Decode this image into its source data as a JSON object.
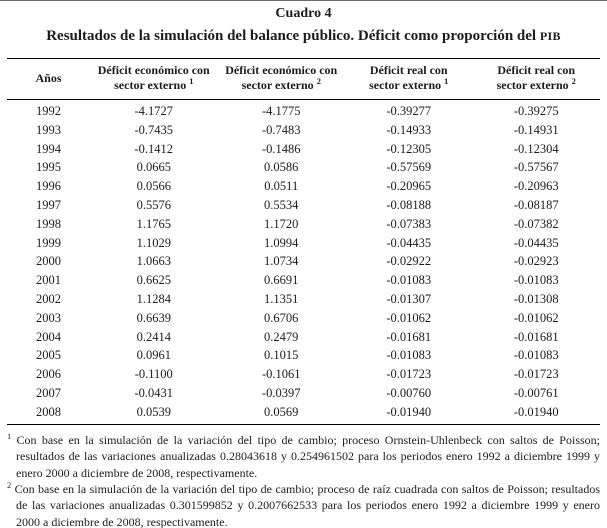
{
  "page": {
    "caption_number": "Cuadro 4",
    "caption_title_text": "Resultados de la simulación del balance público. Déficit como proporción del ",
    "caption_title_acronym": "PIB"
  },
  "table": {
    "columns": [
      {
        "label": "Años"
      },
      {
        "line1": "Déficit económico con",
        "line2": "sector externo",
        "sup": "1"
      },
      {
        "line1": "Déficit económico con",
        "line2": "sector externo",
        "sup": "2"
      },
      {
        "line1": "Déficit real con",
        "line2": "sector externo",
        "sup": "1"
      },
      {
        "line1": "Déficit real con",
        "line2": "sector externo",
        "sup": "2"
      }
    ],
    "rows": [
      {
        "year": "1992",
        "econ1": "-4.1727",
        "econ2": "-4.1775",
        "real1": "-0.39277",
        "real2": "-0.39275"
      },
      {
        "year": "1993",
        "econ1": "-0.7435",
        "econ2": "-0.7483",
        "real1": "-0.14933",
        "real2": "-0.14931"
      },
      {
        "year": "1994",
        "econ1": "-0.1412",
        "econ2": "-0.1486",
        "real1": "-0.12305",
        "real2": "-0.12304"
      },
      {
        "year": "1995",
        "econ1": "0.0665",
        "econ2": "0.0586",
        "real1": "-0.57569",
        "real2": "-0.57567"
      },
      {
        "year": "1996",
        "econ1": "0.0566",
        "econ2": "0.0511",
        "real1": "-0.20965",
        "real2": "-0.20963"
      },
      {
        "year": "1997",
        "econ1": "0.5576",
        "econ2": "0.5534",
        "real1": "-0.08188",
        "real2": "-0.08187"
      },
      {
        "year": "1998",
        "econ1": "1.1765",
        "econ2": "1.1720",
        "real1": "-0.07383",
        "real2": "-0.07382"
      },
      {
        "year": "1999",
        "econ1": "1.1029",
        "econ2": "1.0994",
        "real1": "-0.04435",
        "real2": "-0.04435"
      },
      {
        "year": "2000",
        "econ1": "1.0663",
        "econ2": "1.0734",
        "real1": "-0.02922",
        "real2": "-0.02923"
      },
      {
        "year": "2001",
        "econ1": "0.6625",
        "econ2": "0.6691",
        "real1": "-0.01083",
        "real2": "-0.01083"
      },
      {
        "year": "2002",
        "econ1": "1.1284",
        "econ2": "1.1351",
        "real1": "-0.01307",
        "real2": "-0.01308"
      },
      {
        "year": "2003",
        "econ1": "0.6639",
        "econ2": "0.6706",
        "real1": "-0.01062",
        "real2": "-0.01062"
      },
      {
        "year": "2004",
        "econ1": "0.2414",
        "econ2": "0.2479",
        "real1": "-0.01681",
        "real2": "-0.01681"
      },
      {
        "year": "2005",
        "econ1": "0.0961",
        "econ2": "0.1015",
        "real1": "-0.01083",
        "real2": "-0.01083"
      },
      {
        "year": "2006",
        "econ1": "-0.1100",
        "econ2": "-0.1061",
        "real1": "-0.01723",
        "real2": "-0.01723"
      },
      {
        "year": "2007",
        "econ1": "-0.0431",
        "econ2": "-0.0397",
        "real1": "-0.00760",
        "real2": "-0.00761"
      },
      {
        "year": "2008",
        "econ1": "0.0539",
        "econ2": "0.0569",
        "real1": "-0.01940",
        "real2": "-0.01940"
      }
    ]
  },
  "footnotes": [
    {
      "marker": "1",
      "text": "Con base en la simulación de la variación del tipo de cambio; proceso Ornstein-Uhlenbeck con saltos de Poisson; resultados de las variaciones anualizadas 0.28043618 y 0.254961502 para los periodos enero 1992 a diciembre 1999 y enero 2000 a diciembre de 2008, respectivamente."
    },
    {
      "marker": "2",
      "text": "Con base en la simulación de la variación del tipo de cambio; proceso de raíz cuadrada con saltos de Poisson; resultados de las variaciones anualizadas 0.301599852 y 0.2007662533 para los periodos enero 1992 a diciembre 1999 y enero 2000 a diciembre de 2008, respectivamente."
    }
  ],
  "colors": {
    "text": "#1c1c1c",
    "rule": "#000000",
    "background": "#ffffff"
  }
}
